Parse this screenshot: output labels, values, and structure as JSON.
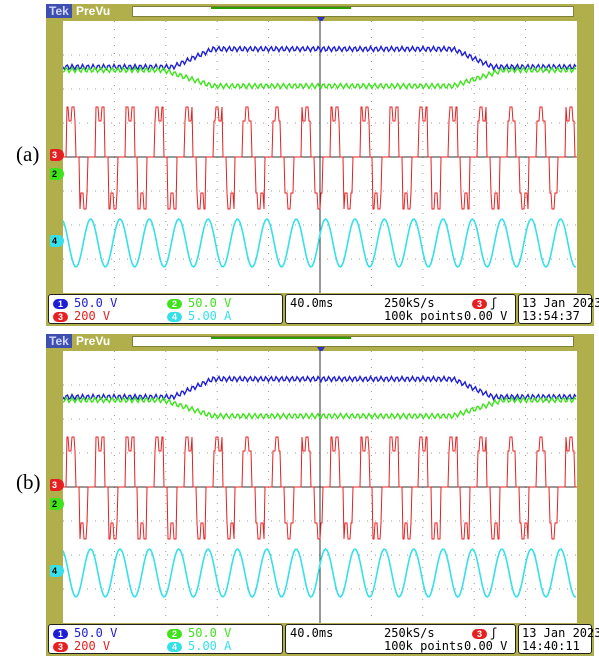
{
  "panels": [
    {
      "label": "(a)",
      "logo": "Tek",
      "run_status": "PreVu",
      "channels": [
        {
          "badge": "1",
          "scale": "50.0 V",
          "color": "#1d1dd6"
        },
        {
          "badge": "2",
          "scale": "50.0 V",
          "color": "#3ee31c"
        },
        {
          "badge": "3",
          "scale": "200 V",
          "color": "#e62020"
        },
        {
          "badge": "4",
          "scale": "5.00 A",
          "color": "#36e0e8"
        }
      ],
      "timebase": "40.0ms",
      "sample_rate": "250kS/s",
      "record_length": "100k points",
      "trigger": {
        "source": "3",
        "slope_icon": "rising-edge-icon",
        "level": "0.00 V"
      },
      "date": "13 Jan  2023",
      "time": "13:54:37"
    },
    {
      "label": "(b)",
      "logo": "Tek",
      "run_status": "PreVu",
      "channels": [
        {
          "badge": "1",
          "scale": "50.0 V",
          "color": "#1d1dd6"
        },
        {
          "badge": "2",
          "scale": "50.0 V",
          "color": "#3ee31c"
        },
        {
          "badge": "3",
          "scale": "200 V",
          "color": "#e62020"
        },
        {
          "badge": "4",
          "scale": "5.00 A",
          "color": "#36e0e8"
        }
      ],
      "timebase": "40.0ms",
      "sample_rate": "250kS/s",
      "record_length": "100k points",
      "trigger": {
        "source": "3",
        "slope_icon": "rising-edge-icon",
        "level": "0.00 V"
      },
      "date": "13 Jan  2023",
      "time": "14:40:11"
    }
  ],
  "colors": {
    "bezel": "#b1af4c",
    "grid": "#9a9a9a"
  }
}
